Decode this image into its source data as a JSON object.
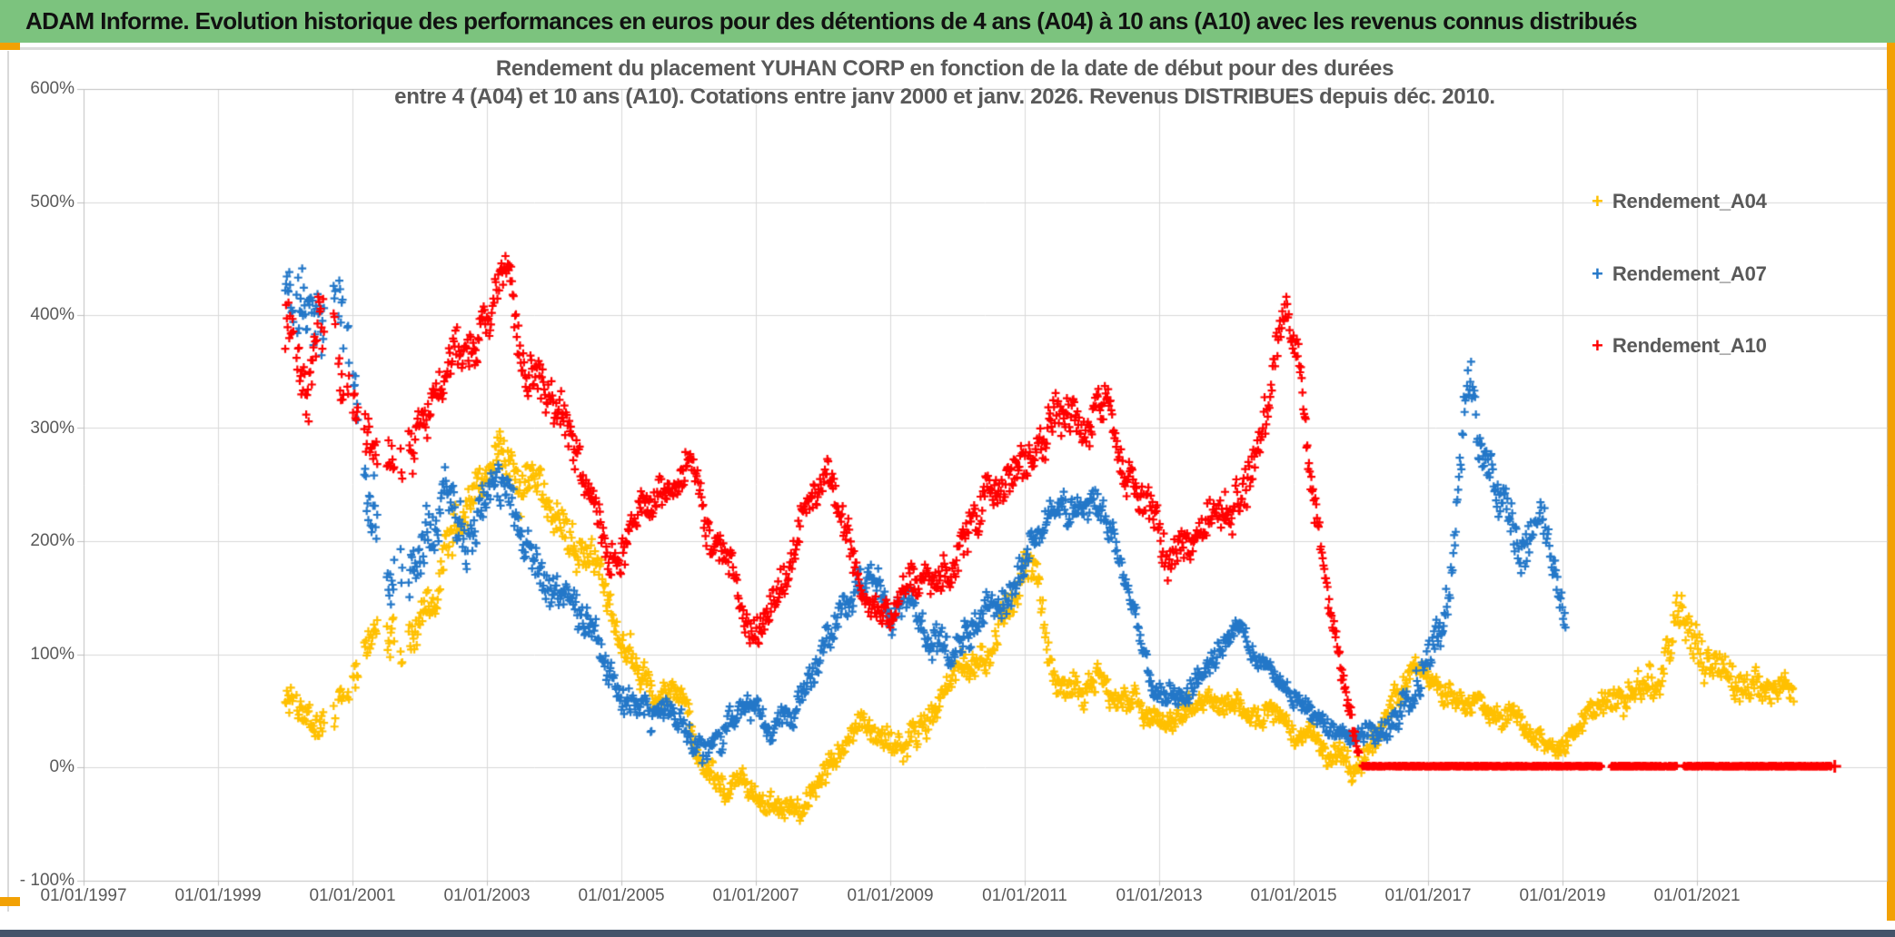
{
  "header": {
    "title": "ADAM Informe. Evolution historique des performances en euros pour des détentions de 4 ans (A04) à 10 ans (A10) avec les revenus connus distribués"
  },
  "colors": {
    "banner_green": "#7CC37E",
    "accent_orange": "#F2A104",
    "dark_strip": "#44546A",
    "text_gray": "#595959",
    "gridline": "#D9D9D9",
    "axis_line": "#BFBFBF",
    "series_a04": "#FFC000",
    "series_a07": "#2377C8",
    "series_a10": "#FF0000"
  },
  "chart_data": {
    "type": "scatter",
    "title_line1": "Rendement du placement YUHAN CORP en fonction de la date de début pour des durées",
    "title_line2": "entre 4 (A04) et 10 ans (A10). Cotations entre janv 2000 et janv. 2026. Revenus DISTRIBUES depuis déc. 2010.",
    "marker": "plus",
    "grid": true,
    "legend_position": "right-inside",
    "x_axis": {
      "min": 1997.0,
      "max": 2023.8,
      "tick_format": "dd/mm/yyyy"
    },
    "y_axis": {
      "min": -100,
      "max": 600,
      "unit": "%"
    },
    "x_ticks": [
      {
        "label": "01/01/1997",
        "year": 1997
      },
      {
        "label": "01/01/1999",
        "year": 1999
      },
      {
        "label": "01/01/2001",
        "year": 2001
      },
      {
        "label": "01/01/2003",
        "year": 2003
      },
      {
        "label": "01/01/2005",
        "year": 2005
      },
      {
        "label": "01/01/2007",
        "year": 2007
      },
      {
        "label": "01/01/2009",
        "year": 2009
      },
      {
        "label": "01/01/2011",
        "year": 2011
      },
      {
        "label": "01/01/2013",
        "year": 2013
      },
      {
        "label": "01/01/2015",
        "year": 2015
      },
      {
        "label": "01/01/2017",
        "year": 2017
      },
      {
        "label": "01/01/2019",
        "year": 2019
      },
      {
        "label": "01/01/2021",
        "year": 2021
      }
    ],
    "y_ticks": [
      {
        "label": "600%",
        "value": 600
      },
      {
        "label": "500%",
        "value": 500
      },
      {
        "label": "400%",
        "value": 400
      },
      {
        "label": "300%",
        "value": 300
      },
      {
        "label": "200%",
        "value": 200
      },
      {
        "label": "100%",
        "value": 100
      },
      {
        "label": "0%",
        "value": 0
      },
      {
        "label": "- 100%",
        "value": -100
      }
    ],
    "series": [
      {
        "name": "Rendement_A04",
        "color": "#FFC000",
        "start": 2000.0,
        "end": 2022.45,
        "step": 0.012,
        "anchors": [
          [
            2000.0,
            65
          ],
          [
            2000.3,
            40
          ],
          [
            2000.55,
            8
          ],
          [
            2000.8,
            55
          ],
          [
            2001.1,
            100
          ],
          [
            2001.4,
            115
          ],
          [
            2001.7,
            90
          ],
          [
            2002.0,
            130
          ],
          [
            2002.3,
            180
          ],
          [
            2002.6,
            230
          ],
          [
            2002.9,
            255
          ],
          [
            2003.2,
            275
          ],
          [
            2003.5,
            240
          ],
          [
            2003.8,
            250
          ],
          [
            2004.1,
            215
          ],
          [
            2004.4,
            185
          ],
          [
            2004.7,
            160
          ],
          [
            2005.0,
            125
          ],
          [
            2005.3,
            80
          ],
          [
            2005.6,
            65
          ],
          [
            2005.9,
            55
          ],
          [
            2006.2,
            10
          ],
          [
            2006.5,
            -10
          ],
          [
            2006.8,
            -20
          ],
          [
            2007.1,
            -32
          ],
          [
            2007.4,
            -43
          ],
          [
            2007.7,
            -40
          ],
          [
            2008.0,
            -12
          ],
          [
            2008.3,
            18
          ],
          [
            2008.6,
            35
          ],
          [
            2008.9,
            30
          ],
          [
            2009.2,
            22
          ],
          [
            2009.5,
            35
          ],
          [
            2009.8,
            60
          ],
          [
            2010.1,
            75
          ],
          [
            2010.4,
            95
          ],
          [
            2010.7,
            130
          ],
          [
            2010.95,
            160
          ],
          [
            2011.15,
            170
          ],
          [
            2011.4,
            95
          ],
          [
            2011.6,
            58
          ],
          [
            2011.9,
            68
          ],
          [
            2012.2,
            72
          ],
          [
            2012.5,
            60
          ],
          [
            2012.8,
            45
          ],
          [
            2013.1,
            38
          ],
          [
            2013.4,
            52
          ],
          [
            2013.7,
            62
          ],
          [
            2014.0,
            58
          ],
          [
            2014.3,
            52
          ],
          [
            2014.6,
            48
          ],
          [
            2014.9,
            42
          ],
          [
            2015.2,
            32
          ],
          [
            2015.5,
            15
          ],
          [
            2015.75,
            2
          ],
          [
            2015.95,
            -6
          ],
          [
            2016.2,
            12
          ],
          [
            2016.5,
            55
          ],
          [
            2016.8,
            92
          ],
          [
            2017.1,
            75
          ],
          [
            2017.4,
            65
          ],
          [
            2017.7,
            62
          ],
          [
            2018.0,
            55
          ],
          [
            2018.3,
            45
          ],
          [
            2018.6,
            30
          ],
          [
            2018.9,
            18
          ],
          [
            2019.2,
            42
          ],
          [
            2019.5,
            60
          ],
          [
            2019.8,
            66
          ],
          [
            2020.1,
            58
          ],
          [
            2020.4,
            72
          ],
          [
            2020.75,
            135
          ],
          [
            2021.0,
            105
          ],
          [
            2021.3,
            80
          ],
          [
            2021.7,
            70
          ],
          [
            2022.0,
            72
          ],
          [
            2022.45,
            60
          ]
        ],
        "spread": [
          [
            2000,
            22
          ],
          [
            2002.5,
            30
          ],
          [
            2004,
            28
          ],
          [
            2006,
            15
          ],
          [
            2008,
            14
          ],
          [
            2010,
            18
          ],
          [
            2011,
            22
          ],
          [
            2013,
            13
          ],
          [
            2016,
            16
          ],
          [
            2019,
            13
          ],
          [
            2020.7,
            28
          ],
          [
            2022.4,
            16
          ]
        ]
      },
      {
        "name": "Rendement_A07",
        "color": "#2377C8",
        "start": 2000.0,
        "end": 2019.05,
        "step": 0.012,
        "anchors": [
          [
            2000.05,
            420
          ],
          [
            2000.35,
            400
          ],
          [
            2000.65,
            430
          ],
          [
            2000.95,
            380
          ],
          [
            2001.2,
            250
          ],
          [
            2001.5,
            185
          ],
          [
            2001.8,
            165
          ],
          [
            2002.1,
            225
          ],
          [
            2002.4,
            270
          ],
          [
            2002.7,
            235
          ],
          [
            2003.0,
            255
          ],
          [
            2003.3,
            270
          ],
          [
            2003.6,
            205
          ],
          [
            2003.9,
            172
          ],
          [
            2004.2,
            150
          ],
          [
            2004.5,
            122
          ],
          [
            2004.8,
            88
          ],
          [
            2005.1,
            52
          ],
          [
            2005.4,
            35
          ],
          [
            2005.7,
            48
          ],
          [
            2006.0,
            28
          ],
          [
            2006.3,
            16
          ],
          [
            2006.6,
            45
          ],
          [
            2006.9,
            52
          ],
          [
            2007.2,
            25
          ],
          [
            2007.5,
            42
          ],
          [
            2007.8,
            75
          ],
          [
            2008.1,
            112
          ],
          [
            2008.4,
            150
          ],
          [
            2008.7,
            165
          ],
          [
            2009.0,
            142
          ],
          [
            2009.3,
            150
          ],
          [
            2009.6,
            118
          ],
          [
            2009.9,
            102
          ],
          [
            2010.2,
            120
          ],
          [
            2010.5,
            140
          ],
          [
            2010.8,
            155
          ],
          [
            2011.1,
            190
          ],
          [
            2011.4,
            220
          ],
          [
            2011.7,
            230
          ],
          [
            2012.0,
            242
          ],
          [
            2012.3,
            215
          ],
          [
            2012.6,
            125
          ],
          [
            2012.9,
            72
          ],
          [
            2013.2,
            60
          ],
          [
            2013.5,
            75
          ],
          [
            2013.8,
            100
          ],
          [
            2014.1,
            115
          ],
          [
            2014.4,
            100
          ],
          [
            2014.7,
            85
          ],
          [
            2015.0,
            62
          ],
          [
            2015.3,
            42
          ],
          [
            2015.6,
            32
          ],
          [
            2015.9,
            22
          ],
          [
            2016.2,
            30
          ],
          [
            2016.5,
            42
          ],
          [
            2016.8,
            75
          ],
          [
            2017.05,
            110
          ],
          [
            2017.3,
            140
          ],
          [
            2017.45,
            250
          ],
          [
            2017.6,
            350
          ],
          [
            2017.75,
            310
          ],
          [
            2017.9,
            272
          ],
          [
            2018.1,
            230
          ],
          [
            2018.3,
            200
          ],
          [
            2018.5,
            172
          ],
          [
            2018.7,
            208
          ],
          [
            2018.9,
            158
          ],
          [
            2019.05,
            128
          ]
        ],
        "spread": [
          [
            2000,
            48
          ],
          [
            2001.5,
            38
          ],
          [
            2003,
            32
          ],
          [
            2005,
            18
          ],
          [
            2007,
            15
          ],
          [
            2009,
            20
          ],
          [
            2012,
            20
          ],
          [
            2014,
            14
          ],
          [
            2016,
            12
          ],
          [
            2017.6,
            34
          ],
          [
            2018.5,
            28
          ],
          [
            2019,
            20
          ]
        ]
      },
      {
        "name": "Rendement_A10",
        "color": "#FF0000",
        "start": 2000.0,
        "end": 2015.98,
        "step": 0.012,
        "anchors": [
          [
            2000.05,
            400
          ],
          [
            2000.35,
            350
          ],
          [
            2000.65,
            400
          ],
          [
            2000.95,
            330
          ],
          [
            2001.2,
            285
          ],
          [
            2001.5,
            252
          ],
          [
            2001.8,
            275
          ],
          [
            2002.1,
            310
          ],
          [
            2002.4,
            340
          ],
          [
            2002.7,
            378
          ],
          [
            2003.0,
            400
          ],
          [
            2003.3,
            428
          ],
          [
            2003.6,
            352
          ],
          [
            2003.9,
            330
          ],
          [
            2004.2,
            300
          ],
          [
            2004.5,
            250
          ],
          [
            2004.8,
            192
          ],
          [
            2005.1,
            210
          ],
          [
            2005.4,
            228
          ],
          [
            2005.7,
            240
          ],
          [
            2006.0,
            258
          ],
          [
            2006.3,
            222
          ],
          [
            2006.6,
            172
          ],
          [
            2006.9,
            132
          ],
          [
            2007.2,
            142
          ],
          [
            2007.5,
            180
          ],
          [
            2007.8,
            238
          ],
          [
            2008.05,
            265
          ],
          [
            2008.3,
            222
          ],
          [
            2008.6,
            162
          ],
          [
            2008.9,
            132
          ],
          [
            2009.2,
            150
          ],
          [
            2009.5,
            165
          ],
          [
            2009.8,
            185
          ],
          [
            2010.1,
            202
          ],
          [
            2010.4,
            235
          ],
          [
            2010.7,
            258
          ],
          [
            2011.0,
            282
          ],
          [
            2011.3,
            312
          ],
          [
            2011.6,
            330
          ],
          [
            2011.9,
            298
          ],
          [
            2012.2,
            318
          ],
          [
            2012.5,
            272
          ],
          [
            2012.8,
            232
          ],
          [
            2013.1,
            182
          ],
          [
            2013.4,
            200
          ],
          [
            2013.7,
            228
          ],
          [
            2014.0,
            230
          ],
          [
            2014.3,
            258
          ],
          [
            2014.6,
            318
          ],
          [
            2014.85,
            420
          ],
          [
            2015.05,
            375
          ],
          [
            2015.25,
            270
          ],
          [
            2015.45,
            175
          ],
          [
            2015.65,
            110
          ],
          [
            2015.85,
            45
          ],
          [
            2015.98,
            12
          ]
        ],
        "spread": [
          [
            2000,
            42
          ],
          [
            2002,
            35
          ],
          [
            2003.3,
            30
          ],
          [
            2005,
            25
          ],
          [
            2007,
            24
          ],
          [
            2009,
            22
          ],
          [
            2011.6,
            28
          ],
          [
            2013,
            24
          ],
          [
            2014.9,
            30
          ],
          [
            2015.6,
            22
          ],
          [
            2015.98,
            10
          ]
        ],
        "flat_band": {
          "start": 2016.02,
          "end": 2023.0,
          "value": 0.9,
          "step": 0.004,
          "gaps": [
            [
              2019.58,
              2019.72
            ],
            [
              2020.7,
              2020.8
            ]
          ],
          "end_marker_year": 2023.05
        }
      }
    ],
    "legend": [
      {
        "label": "Rendement_A04",
        "color": "#FFC000"
      },
      {
        "label": "Rendement_A07",
        "color": "#2377C8"
      },
      {
        "label": "Rendement_A10",
        "color": "#FF0000"
      }
    ]
  }
}
